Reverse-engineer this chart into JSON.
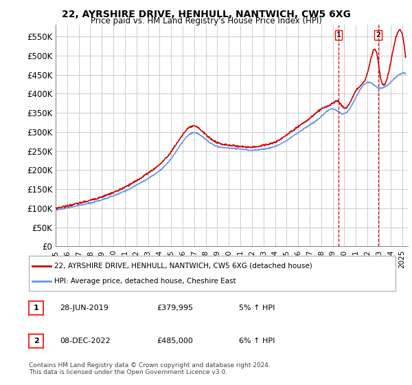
{
  "title": "22, AYRSHIRE DRIVE, HENHULL, NANTWICH, CW5 6XG",
  "subtitle": "Price paid vs. HM Land Registry's House Price Index (HPI)",
  "x_start": 1995.0,
  "x_end": 2025.5,
  "y_min": 0,
  "y_max": 580000,
  "yticks": [
    0,
    50000,
    100000,
    150000,
    200000,
    250000,
    300000,
    350000,
    400000,
    450000,
    500000,
    550000
  ],
  "ytick_labels": [
    "£0",
    "£50K",
    "£100K",
    "£150K",
    "£200K",
    "£250K",
    "£300K",
    "£350K",
    "£400K",
    "£450K",
    "£500K",
    "£550K"
  ],
  "xtick_years": [
    1995,
    1996,
    1997,
    1998,
    1999,
    2000,
    2001,
    2002,
    2003,
    2004,
    2005,
    2006,
    2007,
    2008,
    2009,
    2010,
    2011,
    2012,
    2013,
    2014,
    2015,
    2016,
    2017,
    2018,
    2019,
    2020,
    2021,
    2022,
    2023,
    2024,
    2025
  ],
  "hpi_color": "#6495ED",
  "price_color": "#CC0000",
  "marker1_date": 2019.49,
  "marker1_price": 379995,
  "marker1_label": "1",
  "marker2_date": 2022.93,
  "marker2_price": 485000,
  "marker2_label": "2",
  "legend_label1": "22, AYRSHIRE DRIVE, HENHULL, NANTWICH, CW5 6XG (detached house)",
  "legend_label2": "HPI: Average price, detached house, Cheshire East",
  "table_row1": [
    "1",
    "28-JUN-2019",
    "£379,995",
    "5% ↑ HPI"
  ],
  "table_row2": [
    "2",
    "08-DEC-2022",
    "£485,000",
    "6% ↑ HPI"
  ],
  "footnote": "Contains HM Land Registry data © Crown copyright and database right 2024.\nThis data is licensed under the Open Government Licence v3.0.",
  "bg_color": "#ffffff",
  "plot_bg_color": "#ffffff",
  "grid_color": "#cccccc"
}
